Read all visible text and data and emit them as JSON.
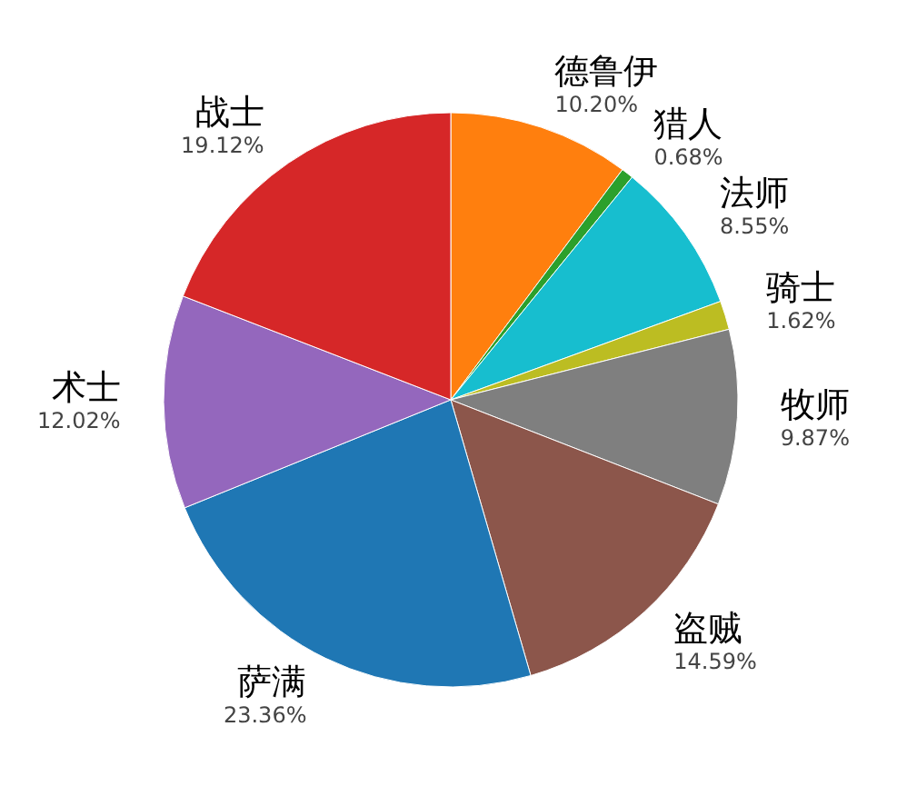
{
  "chart_data": {
    "type": "pie",
    "categories": [
      "德鲁伊",
      "猎人",
      "法师",
      "骑士",
      "牧师",
      "盗贼",
      "萨满",
      "术士",
      "战士"
    ],
    "values": [
      10.2,
      0.68,
      8.55,
      1.62,
      9.87,
      14.59,
      23.36,
      12.02,
      19.12
    ],
    "value_labels": [
      "10.20%",
      "0.68%",
      "8.55%",
      "1.62%",
      "9.87%",
      "14.59%",
      "23.36%",
      "12.02%",
      "19.12%"
    ],
    "colors": [
      "#ff7f0e",
      "#2ca02c",
      "#17becf",
      "#bcbd22",
      "#7f7f7f",
      "#8c564b",
      "#1f77b4",
      "#9467bd",
      "#d62728"
    ]
  }
}
